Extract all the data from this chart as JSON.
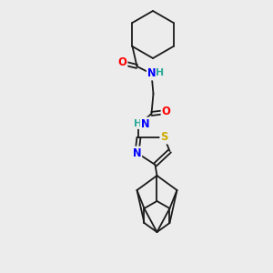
{
  "background_color": "#ececec",
  "bond_color": "#1a1a1a",
  "atom_colors": {
    "O": "#ff0000",
    "N": "#0000ff",
    "S": "#ccaa00",
    "HN": "#2aaa99",
    "C": "#1a1a1a"
  },
  "lw": 1.3,
  "fs": 7.8
}
